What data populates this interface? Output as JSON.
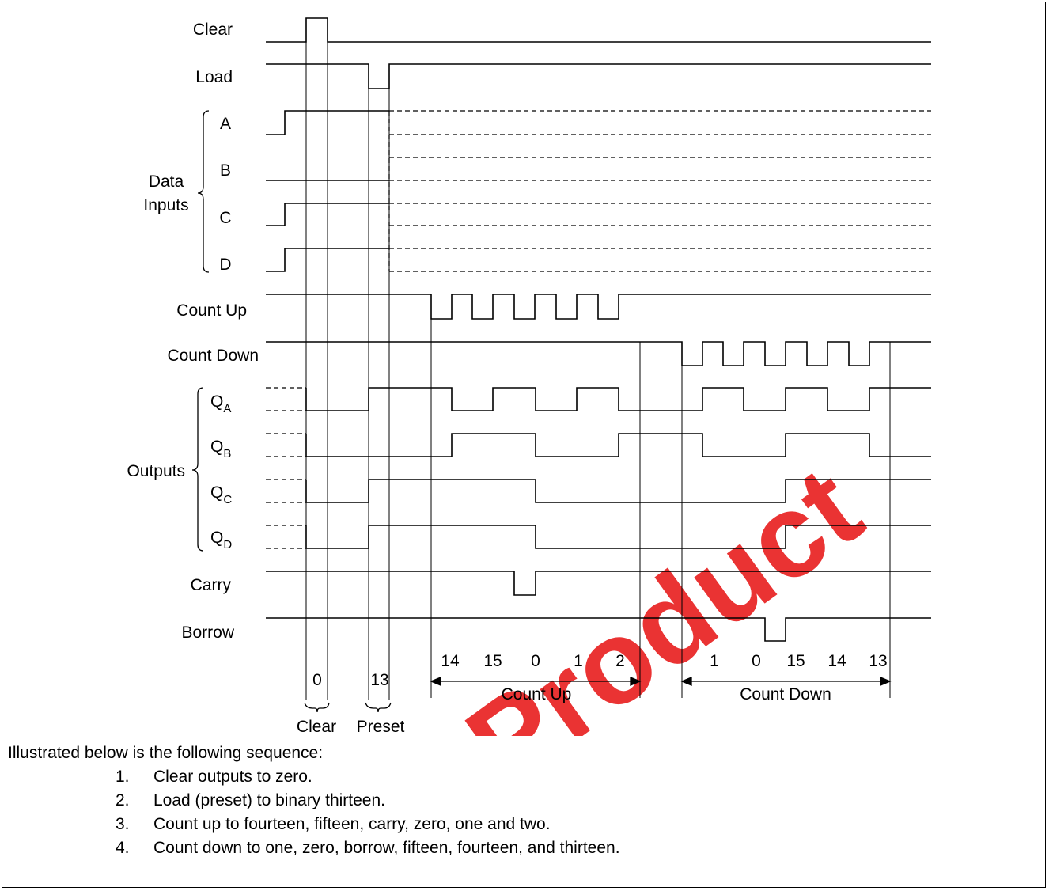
{
  "watermark": "Product",
  "signals": {
    "clear": "Clear",
    "load": "Load",
    "data_inputs": [
      "Data",
      "Inputs"
    ],
    "a": "A",
    "b": "B",
    "c": "C",
    "d": "D",
    "count_up": "Count Up",
    "count_down": "Count Down",
    "outputs": "Outputs",
    "qa": {
      "base": "Q",
      "sub": "A"
    },
    "qb": {
      "base": "Q",
      "sub": "B"
    },
    "qc": {
      "base": "Q",
      "sub": "C"
    },
    "qd": {
      "base": "Q",
      "sub": "D"
    },
    "carry": "Carry",
    "borrow": "Borrow"
  },
  "states": {
    "clear_value": "0",
    "preset_value": "13",
    "count_up_values": [
      "14",
      "15",
      "0",
      "1",
      "2"
    ],
    "count_down_values": [
      "1",
      "0",
      "15",
      "14",
      "13"
    ],
    "count_up_label": "Count Up",
    "count_down_label": "Count Down",
    "clear_label": "Clear",
    "preset_label": "Preset"
  },
  "notes": {
    "intro": "Illustrated below is the following sequence:",
    "steps": [
      {
        "num": "1.",
        "text": "Clear outputs to zero."
      },
      {
        "num": "2.",
        "text": "Load (preset) to binary thirteen."
      },
      {
        "num": "3.",
        "text": "Count up to fourteen, fifteen, carry, zero, one and two."
      },
      {
        "num": "4.",
        "text": "Count down to one, zero, borrow, fifteen, fourteen, and thirteen."
      }
    ]
  },
  "colors": {
    "ink": "#000000",
    "watermark": "#e81e1e"
  }
}
